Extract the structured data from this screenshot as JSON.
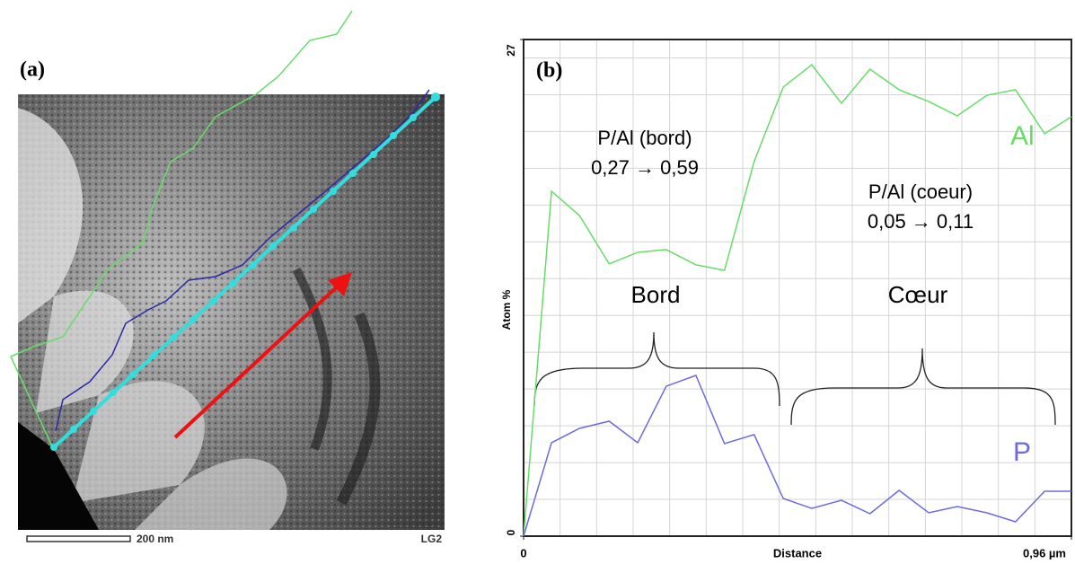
{
  "image_panel": {
    "label": "(a)",
    "scale_bar": "200 nm",
    "tag": "LG2"
  },
  "chart_data": {
    "type": "line",
    "x_label": "Distance",
    "y_label": "Atom %",
    "xlim": [
      0,
      0.96
    ],
    "ylim": [
      0,
      27
    ],
    "xticks": [
      {
        "value": 0,
        "label": "0"
      },
      {
        "value": 0.96,
        "label": "0,96 µm"
      }
    ],
    "yticks": [
      0,
      27
    ],
    "grid": true,
    "x": [
      0,
      0.049,
      0.098,
      0.15,
      0.2,
      0.25,
      0.302,
      0.352,
      0.404,
      0.455,
      0.505,
      0.557,
      0.607,
      0.658,
      0.71,
      0.76,
      0.812,
      0.862,
      0.913,
      0.96
    ],
    "series": [
      {
        "name": "Al",
        "color": "#66dd66",
        "values": [
          0,
          18.75,
          17.43,
          14.8,
          15.43,
          15.58,
          14.75,
          14.45,
          20.36,
          24.41,
          25.63,
          23.53,
          25.39,
          24.27,
          23.63,
          22.85,
          23.97,
          24.27,
          21.88,
          22.8
        ]
      },
      {
        "name": "P",
        "color": "#6b6be0",
        "values": [
          0,
          5.08,
          5.86,
          6.25,
          5.08,
          8.15,
          8.74,
          5.03,
          5.52,
          2.05,
          1.51,
          1.95,
          1.22,
          2.49,
          1.27,
          1.61,
          1.27,
          0.78,
          2.44,
          2.44
        ]
      }
    ],
    "annotations": [
      "(b)",
      "P/Al (bord)",
      "0,27 → 0,59",
      "P/Al (coeur)",
      "0,05 → 0,11",
      "Bord",
      "Cœur"
    ]
  }
}
